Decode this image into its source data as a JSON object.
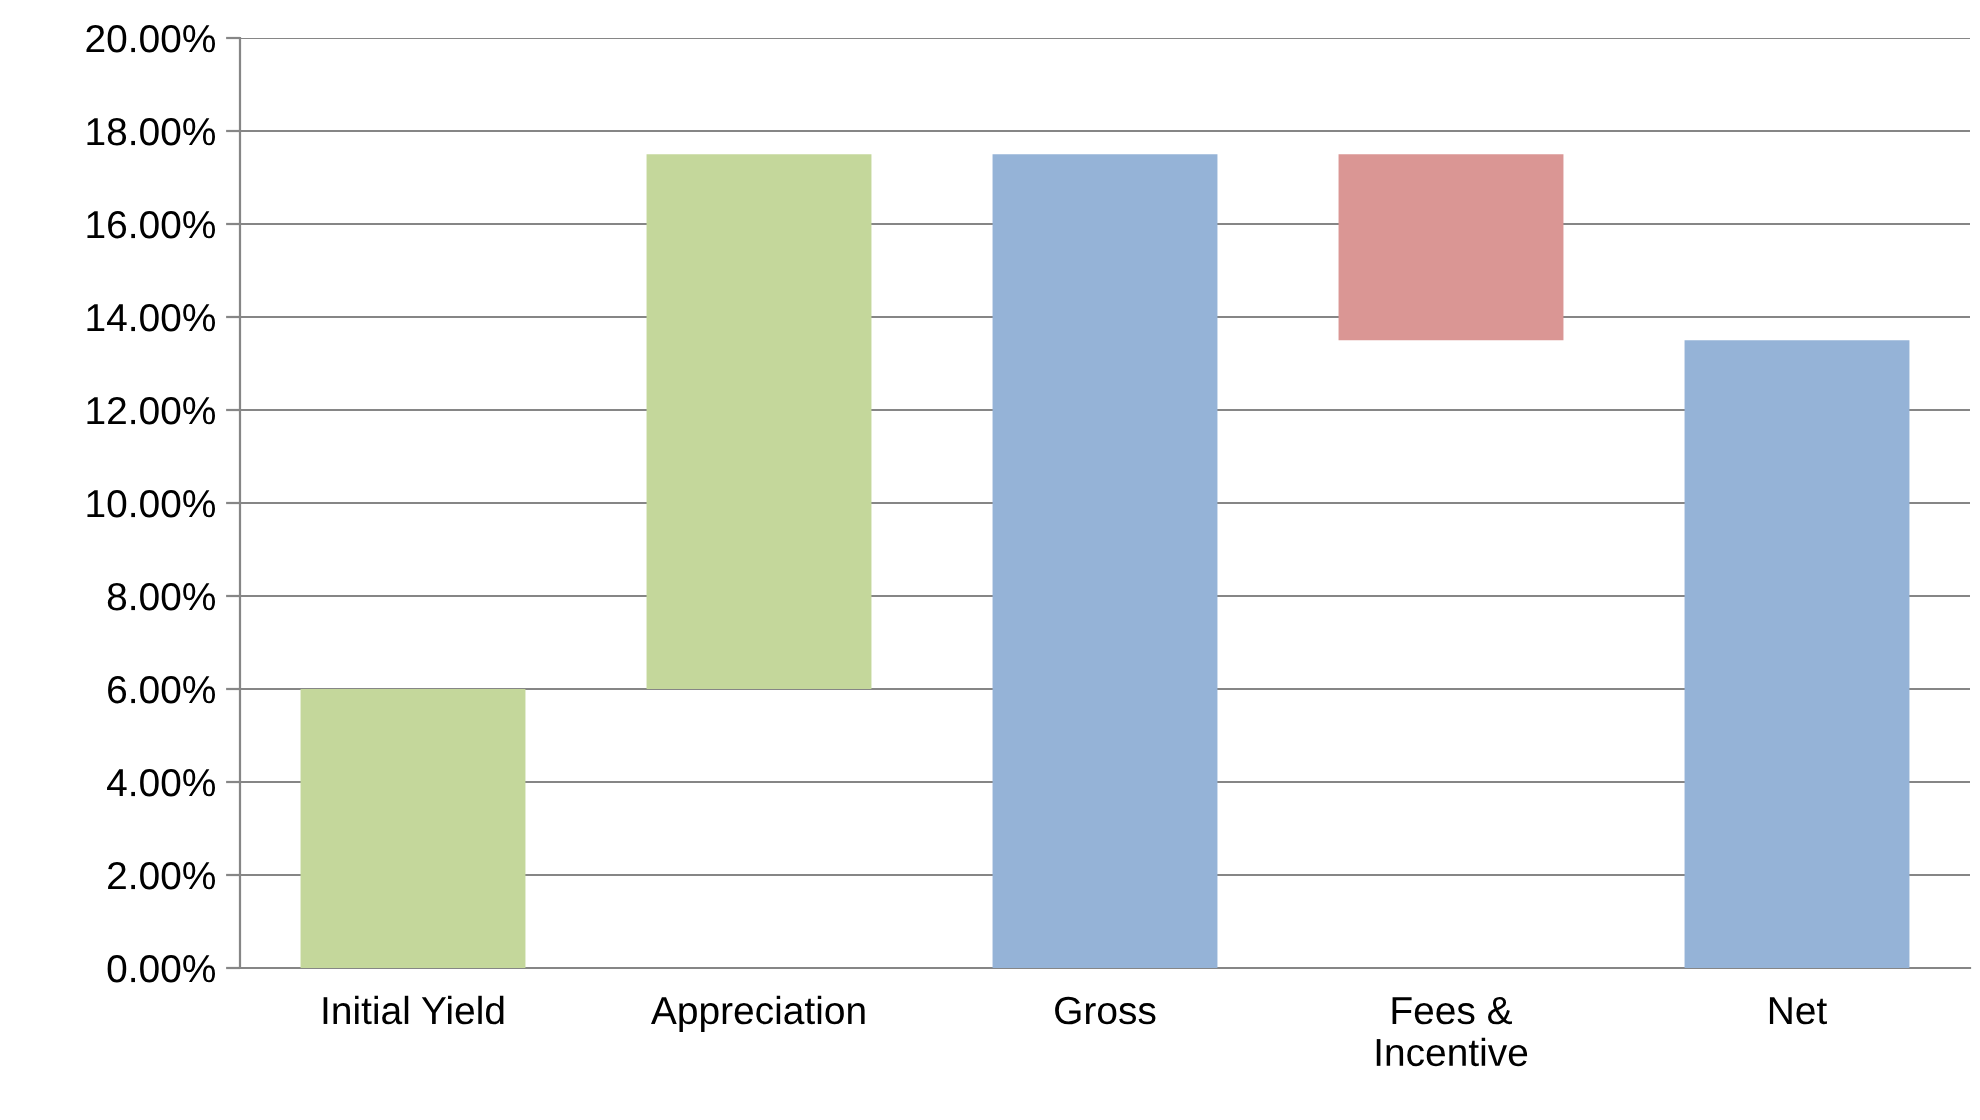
{
  "chart_data": {
    "type": "bar",
    "categories": [
      "Initial Yield",
      "Appreciation",
      "Gross",
      "Fees &\nIncentive",
      "Net"
    ],
    "values": [
      6.0,
      11.5,
      17.5,
      4.0,
      13.5
    ],
    "base": [
      0,
      6.0,
      0,
      13.5,
      0
    ],
    "colors": [
      "#c4d79b",
      "#c4d79b",
      "#95b3d7",
      "#da9694",
      "#95b3d7"
    ],
    "ylim": [
      0,
      20
    ],
    "yticks": [
      {
        "value": 0,
        "label": "0.00%"
      },
      {
        "value": 2,
        "label": "2.00%"
      },
      {
        "value": 4,
        "label": "4.00%"
      },
      {
        "value": 6,
        "label": "6.00%"
      },
      {
        "value": 8,
        "label": "8.00%"
      },
      {
        "value": 10,
        "label": "10.00%"
      },
      {
        "value": 12,
        "label": "12.00%"
      },
      {
        "value": 14,
        "label": "14.00%"
      },
      {
        "value": 16,
        "label": "16.00%"
      },
      {
        "value": 18,
        "label": "18.00%"
      },
      {
        "value": 20,
        "label": "20.00%"
      }
    ],
    "grid": "y"
  }
}
